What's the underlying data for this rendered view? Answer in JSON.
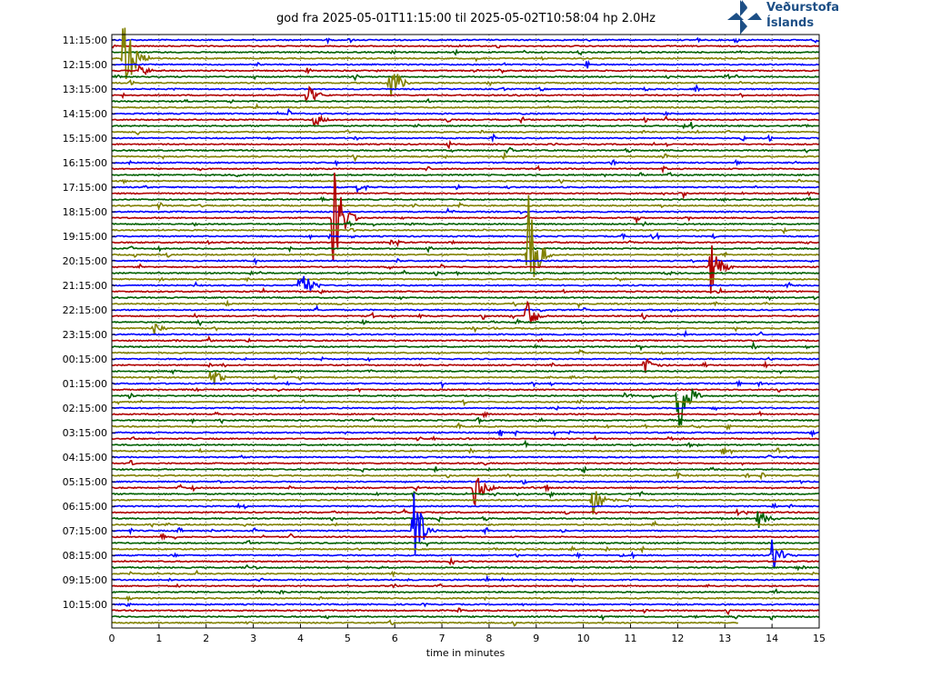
{
  "chart_data": {
    "type": "line",
    "title": "god fra 2025-05-01T11:15:00 til 2025-05-02T10:58:04 hp 2.0Hz",
    "xlabel": "time in minutes",
    "ylabel": "",
    "xlim": [
      0,
      15
    ],
    "x_ticks": [
      "0",
      "1",
      "2",
      "3",
      "4",
      "5",
      "6",
      "7",
      "8",
      "9",
      "10",
      "11",
      "12",
      "13",
      "14",
      "15"
    ],
    "y_tick_labels": [
      "11:15:00",
      "12:15:00",
      "13:15:00",
      "14:15:00",
      "15:15:00",
      "16:15:00",
      "17:15:00",
      "18:15:00",
      "19:15:00",
      "20:15:00",
      "21:15:00",
      "22:15:00",
      "23:15:00",
      "00:15:00",
      "01:15:00",
      "02:15:00",
      "03:15:00",
      "04:15:00",
      "05:15:00",
      "06:15:00",
      "07:15:00",
      "08:15:00",
      "09:15:00",
      "10:15:00"
    ],
    "rows_per_hour": 4,
    "total_rows": 96,
    "last_row_end_minute": 13.3,
    "grid": "vertical dotted lines at each minute",
    "series_colors": [
      "#0000ff",
      "#b00000",
      "#006000",
      "#808000"
    ],
    "events": [
      {
        "row": 3,
        "minute": 0.25,
        "amp": 60
      },
      {
        "row": 5,
        "minute": 0.6,
        "amp": 8
      },
      {
        "row": 9,
        "minute": 4.15,
        "amp": 14
      },
      {
        "row": 7,
        "minute": 5.9,
        "amp": 30
      },
      {
        "row": 13,
        "minute": 4.3,
        "amp": 8
      },
      {
        "row": 18,
        "minute": 8.4,
        "amp": 6
      },
      {
        "row": 24,
        "minute": 5.2,
        "amp": 6
      },
      {
        "row": 29,
        "minute": 4.7,
        "amp": 70
      },
      {
        "row": 35,
        "minute": 8.8,
        "amp": 90
      },
      {
        "row": 40,
        "minute": 4.0,
        "amp": 25
      },
      {
        "row": 37,
        "minute": 12.7,
        "amp": 35
      },
      {
        "row": 45,
        "minute": 8.8,
        "amp": 20
      },
      {
        "row": 47,
        "minute": 0.9,
        "amp": 8
      },
      {
        "row": 53,
        "minute": 11.3,
        "amp": 10
      },
      {
        "row": 55,
        "minute": 2.1,
        "amp": 14
      },
      {
        "row": 58,
        "minute": 12.0,
        "amp": 60
      },
      {
        "row": 73,
        "minute": 7.7,
        "amp": 25
      },
      {
        "row": 75,
        "minute": 10.2,
        "amp": 20
      },
      {
        "row": 80,
        "minute": 6.4,
        "amp": 55
      },
      {
        "row": 78,
        "minute": 13.7,
        "amp": 12
      },
      {
        "row": 84,
        "minute": 14.0,
        "amp": 20
      }
    ]
  },
  "logo": {
    "line1": "Veðurstofa",
    "line2": "Íslands",
    "color": "#1d4f86"
  }
}
